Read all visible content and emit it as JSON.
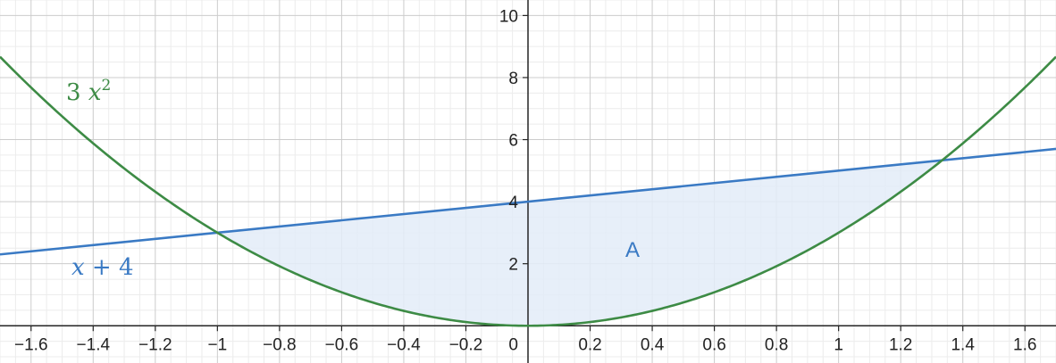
{
  "chart_data": {
    "type": "area",
    "xlim": [
      -1.7,
      1.7
    ],
    "ylim": [
      -1.2,
      10.5
    ],
    "grid": true,
    "minor_grid": true,
    "x_ticks": [
      -1.6,
      -1.4,
      -1.2,
      -1,
      -0.8,
      -0.6,
      -0.4,
      -0.2,
      0.2,
      0.4,
      0.6,
      0.8,
      1,
      1.2,
      1.4,
      1.6
    ],
    "x_tick_labels": [
      "−1.6",
      "−1.4",
      "−1.2",
      "−1",
      "−0.8",
      "−0.6",
      "−0.4",
      "−0.2",
      "0.2",
      "0.4",
      "0.6",
      "0.8",
      "1",
      "1.2",
      "1.4",
      "1.6"
    ],
    "y_ticks": [
      2,
      4,
      6,
      8,
      10
    ],
    "y_tick_labels": [
      "2",
      "4",
      "6",
      "8",
      "10"
    ],
    "origin_label": "0",
    "series": [
      {
        "label": "3 x²",
        "label_parts": [
          "3 ",
          "x",
          "2"
        ],
        "color": "#3d8b45",
        "x": [
          -1.7,
          -1.6,
          -1.4,
          -1.2,
          -1.0,
          -0.8,
          -0.6,
          -0.4,
          -0.2,
          0.0,
          0.2,
          0.4,
          0.6,
          0.8,
          1.0,
          1.2,
          1.4,
          1.6,
          1.7
        ],
        "y": [
          8.67,
          7.68,
          5.88,
          4.32,
          3.0,
          1.92,
          1.08,
          0.48,
          0.12,
          0.0,
          0.12,
          0.48,
          1.08,
          1.92,
          3.0,
          4.32,
          5.88,
          7.68,
          8.67
        ]
      },
      {
        "label": "x + 4",
        "label_parts": [
          "x",
          " + 4"
        ],
        "color": "#3a7ac4",
        "x": [
          -1.7,
          1.7
        ],
        "y": [
          2.3,
          5.7
        ]
      }
    ],
    "region": {
      "label": "A",
      "between": [
        "x + 4",
        "3 x²"
      ],
      "x_range": [
        -1.0,
        1.333
      ],
      "fill_color": "#e3ecf8",
      "label_color": "#3a7ac4"
    }
  }
}
